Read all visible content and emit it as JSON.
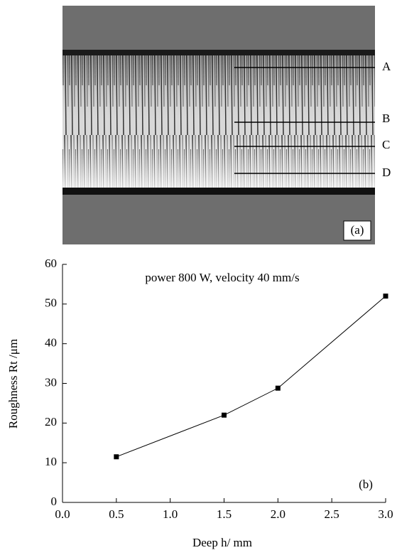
{
  "image": {
    "markers": [
      "A",
      "B",
      "C",
      "D"
    ],
    "caption": "(a)"
  },
  "chart_data": {
    "type": "line",
    "annotation": "power 800 W, velocity 40 mm/s",
    "panel_label": "(b)",
    "xlabel": "Deep h/ mm",
    "ylabel": "Roughness Rt /μm",
    "x": [
      0.5,
      1.5,
      2.0,
      3.0
    ],
    "series": [
      {
        "color": "#000000",
        "values": [
          11.5,
          22,
          28.8,
          52
        ]
      }
    ],
    "xlim": [
      0,
      3.0
    ],
    "xticks": [
      {
        "value": 0,
        "label": "0.0"
      },
      0.5,
      {
        "value": 1,
        "label": "1.0"
      },
      1.5,
      {
        "value": 2,
        "label": "2.0"
      },
      2.5,
      {
        "value": 3,
        "label": "3.0"
      }
    ],
    "ylim": [
      0,
      60
    ],
    "yticks": [
      0,
      10,
      20,
      30,
      40,
      50,
      60
    ]
  }
}
